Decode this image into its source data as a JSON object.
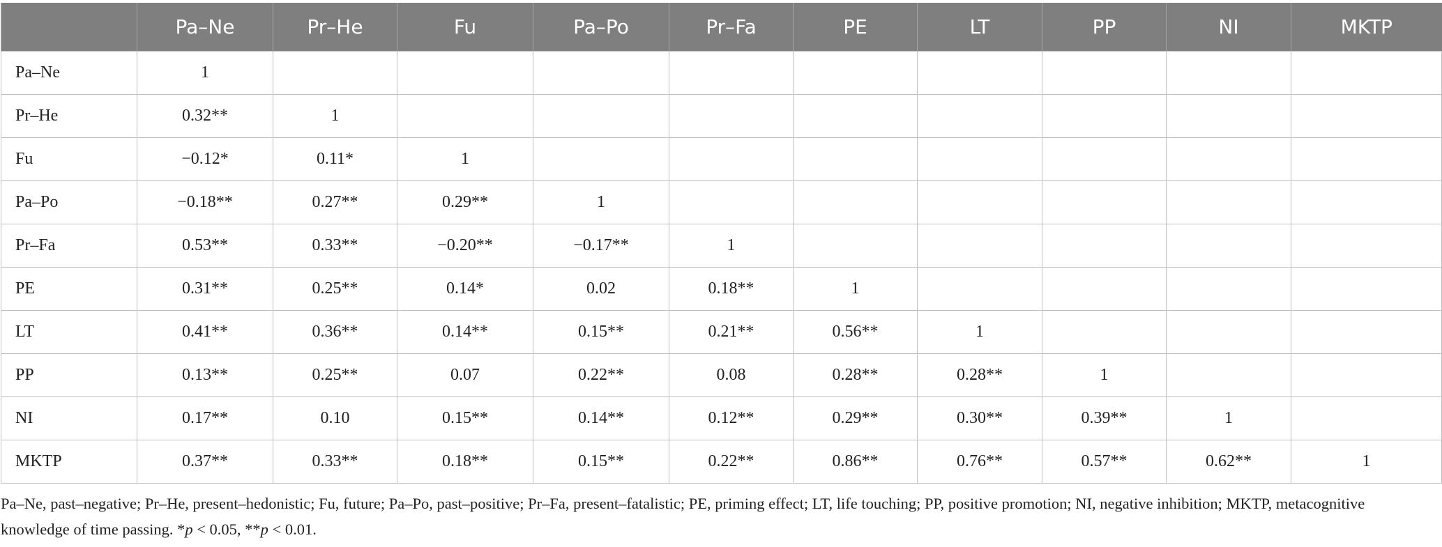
{
  "table": {
    "columns": [
      "Pa–Ne",
      "Pr–He",
      "Fu",
      "Pa–Po",
      "Pr–Fa",
      "PE",
      "LT",
      "PP",
      "NI",
      "MKTP"
    ],
    "rows": [
      {
        "label": "Pa–Ne",
        "cells": [
          "1"
        ]
      },
      {
        "label": "Pr–He",
        "cells": [
          "0.32**",
          "1"
        ]
      },
      {
        "label": "Fu",
        "cells": [
          "−0.12*",
          "0.11*",
          "1"
        ]
      },
      {
        "label": "Pa–Po",
        "cells": [
          "−0.18**",
          "0.27**",
          "0.29**",
          "1"
        ]
      },
      {
        "label": "Pr–Fa",
        "cells": [
          "0.53**",
          "0.33**",
          "−0.20**",
          "−0.17**",
          "1"
        ]
      },
      {
        "label": "PE",
        "cells": [
          "0.31**",
          "0.25**",
          "0.14*",
          "0.02",
          "0.18**",
          "1"
        ]
      },
      {
        "label": "LT",
        "cells": [
          "0.41**",
          "0.36**",
          "0.14**",
          "0.15**",
          "0.21**",
          "0.56**",
          "1"
        ]
      },
      {
        "label": "PP",
        "cells": [
          "0.13**",
          "0.25**",
          "0.07",
          "0.22**",
          "0.08",
          "0.28**",
          "0.28**",
          "1"
        ]
      },
      {
        "label": "NI",
        "cells": [
          "0.17**",
          "0.10",
          "0.15**",
          "0.14**",
          "0.12**",
          "0.29**",
          "0.30**",
          "0.39**",
          "1"
        ]
      },
      {
        "label": "MKTP",
        "cells": [
          "0.37**",
          "0.33**",
          "0.18**",
          "0.15**",
          "0.22**",
          "0.86**",
          "0.76**",
          "0.57**",
          "0.62**",
          "1"
        ]
      }
    ]
  },
  "footnote": [
    "Pa–Ne, past–negative; Pr–He, present–hedonistic; Fu, future; Pa–Po, past–positive; Pr–Fa, present–fatalistic; PE, priming effect; LT, life touching; PP, positive promotion; NI, negative inhibition; MKTP, metacognitive knowledge of time passing. *",
    "p",
    " < 0.05, **",
    "p",
    " < 0.01."
  ]
}
